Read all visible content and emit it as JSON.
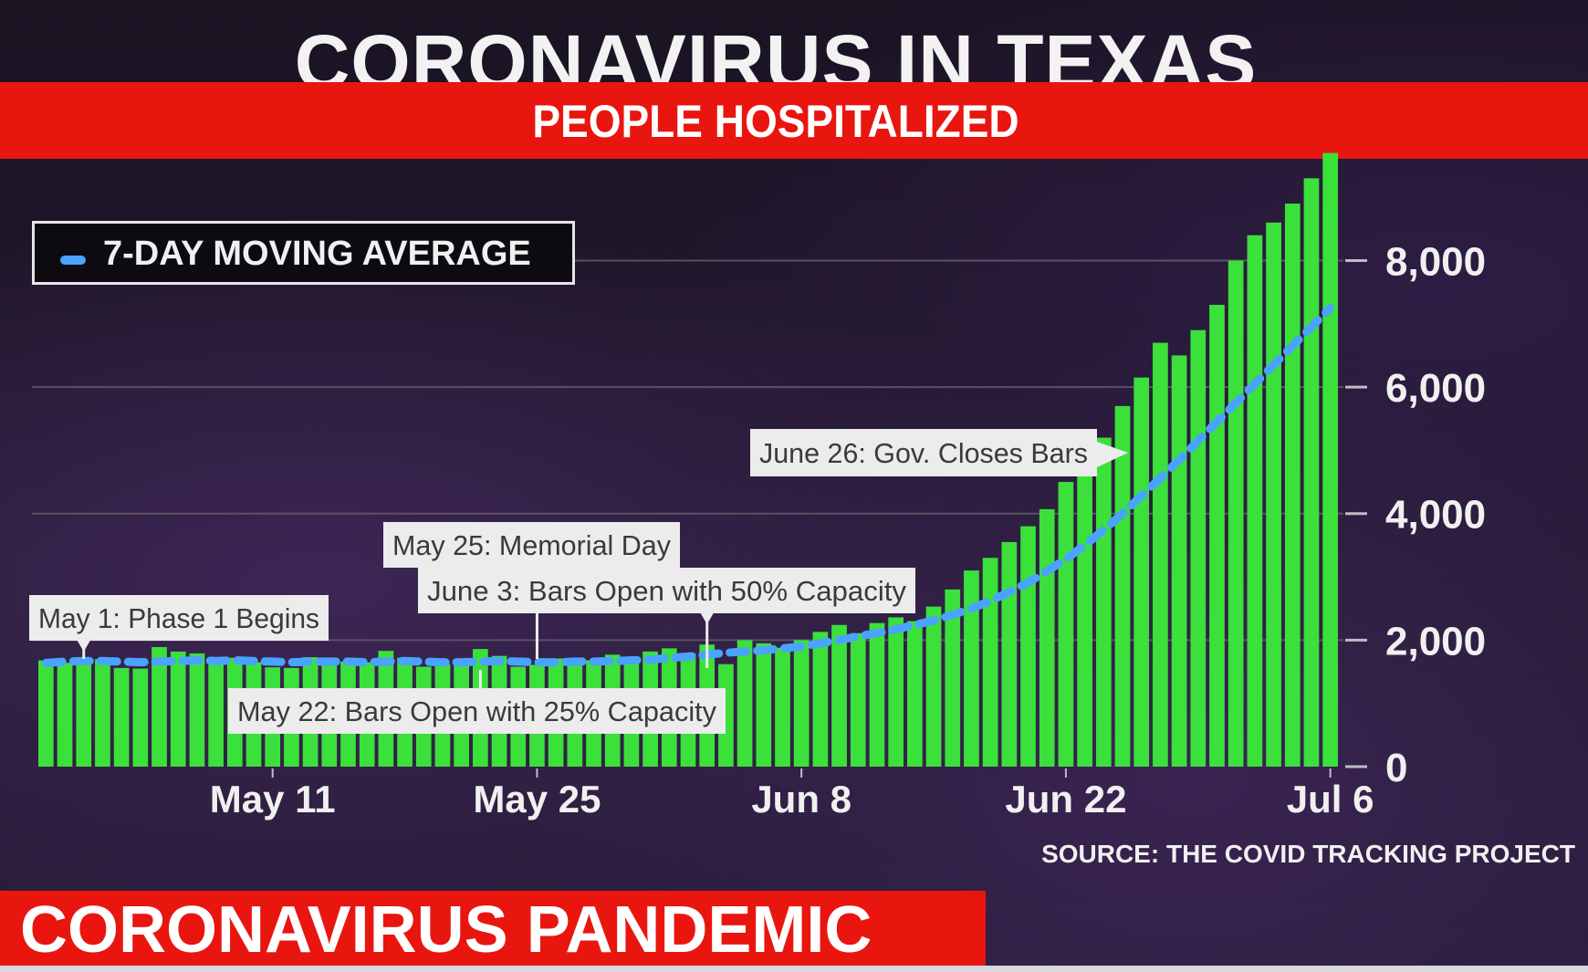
{
  "header": {
    "title": "CORONAVIRUS IN TEXAS",
    "subtitle": "PEOPLE HOSPITALIZED"
  },
  "legend": {
    "label": "7-DAY MOVING AVERAGE"
  },
  "source": "SOURCE: THE COVID TRACKING PROJECT",
  "ticker": {
    "label": "CORONAVIRUS PANDEMIC"
  },
  "colors": {
    "bar": "#3be03b",
    "average_line": "#4aa3ff",
    "accent_red": "#e8160f"
  },
  "chart_data": {
    "type": "bar",
    "title": "PEOPLE HOSPITALIZED",
    "xlabel": "",
    "ylabel": "",
    "ylim": [
      0,
      8800
    ],
    "yticks": [
      0,
      2000,
      4000,
      6000,
      8000
    ],
    "ytick_labels": [
      "0",
      "2,000",
      "4,000",
      "6,000",
      "8,000"
    ],
    "grid": true,
    "x_tick_labels": [
      {
        "index": 12,
        "label": "May 11"
      },
      {
        "index": 26,
        "label": "May 25"
      },
      {
        "index": 40,
        "label": "Jun 8"
      },
      {
        "index": 54,
        "label": "Jun 22"
      },
      {
        "index": 68,
        "label": "Jul 6"
      }
    ],
    "series": [
      {
        "type": "bar",
        "values": [
          1680,
          1640,
          1720,
          1700,
          1560,
          1550,
          1890,
          1820,
          1790,
          1690,
          1720,
          1650,
          1570,
          1560,
          1730,
          1690,
          1660,
          1650,
          1830,
          1720,
          1580,
          1620,
          1680,
          1860,
          1750,
          1580,
          1610,
          1710,
          1600,
          1680,
          1770,
          1690,
          1820,
          1870,
          1790,
          1930,
          1620,
          2000,
          1950,
          1880,
          2000,
          2130,
          2240,
          2110,
          2270,
          2360,
          2300,
          2530,
          2800,
          3100,
          3300,
          3550,
          3800,
          4070,
          4500,
          4800,
          5200,
          5700,
          6150,
          6700,
          6500,
          6900,
          7300,
          8000,
          8400,
          8600,
          8900,
          9300,
          9700
        ]
      },
      {
        "type": "line",
        "values": [
          1640,
          1660,
          1670,
          1670,
          1660,
          1650,
          1660,
          1670,
          1680,
          1670,
          1680,
          1670,
          1660,
          1650,
          1660,
          1660,
          1660,
          1650,
          1660,
          1670,
          1660,
          1650,
          1650,
          1660,
          1670,
          1660,
          1650,
          1650,
          1660,
          1660,
          1670,
          1680,
          1690,
          1720,
          1740,
          1770,
          1800,
          1820,
          1840,
          1870,
          1900,
          1950,
          2000,
          2060,
          2110,
          2170,
          2240,
          2310,
          2400,
          2500,
          2620,
          2760,
          2910,
          3090,
          3280,
          3500,
          3740,
          4000,
          4280,
          4560,
          4850,
          5150,
          5450,
          5750,
          6050,
          6350,
          6650,
          6950,
          7250
        ]
      }
    ],
    "annotations": [
      {
        "text": "May 1: Phase 1 Begins",
        "index": 2
      },
      {
        "text": "May 22: Bars Open with 25% Capacity",
        "index": 23
      },
      {
        "text": "May 25: Memorial Day",
        "index": 26
      },
      {
        "text": "June 3: Bars Open with 50% Capacity",
        "index": 35
      },
      {
        "text": "June 26: Gov. Closes Bars",
        "index": 58
      }
    ]
  }
}
